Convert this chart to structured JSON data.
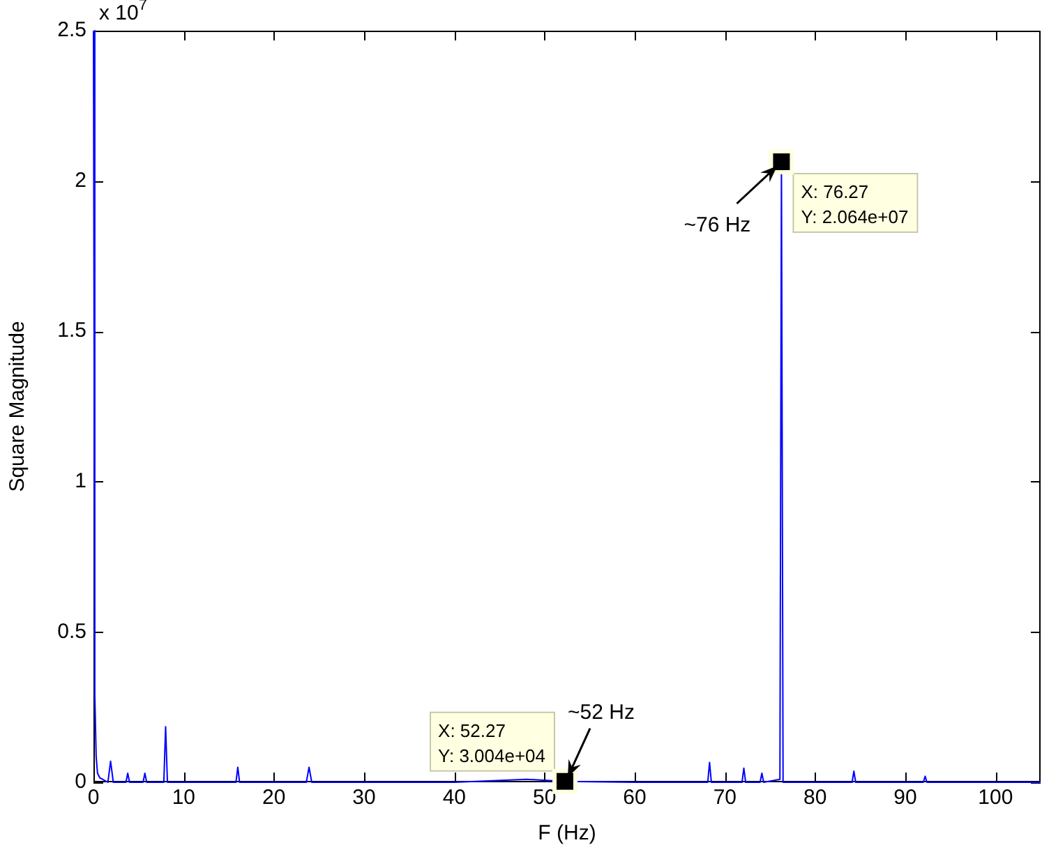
{
  "chart_data": {
    "type": "line",
    "xlabel": "F (Hz)",
    "ylabel": "Square Magnitude",
    "x": [
      0,
      0.15,
      0.3,
      0.45,
      0.7,
      1.0,
      1.6,
      1.9,
      2.2,
      3.6,
      3.8,
      4.0,
      5.5,
      5.7,
      5.9,
      7.8,
      8.0,
      8.2,
      15.8,
      16.0,
      16.2,
      23.6,
      23.9,
      24.2,
      30,
      40,
      48,
      52.27,
      60,
      68.1,
      68.3,
      68.5,
      71.9,
      72.1,
      72.3,
      73.9,
      74.1,
      74.3,
      76.1,
      76.27,
      76.45,
      84.1,
      84.3,
      84.5,
      92.0,
      92.2,
      92.4,
      105
    ],
    "values": [
      2.5,
      0.29,
      0.085,
      0.03,
      0.015,
      0.01,
      0,
      0.07,
      0,
      0,
      0.03,
      0,
      0,
      0.03,
      0,
      0,
      0.185,
      0,
      0,
      0.05,
      0,
      0,
      0.05,
      0,
      0,
      0,
      0.01,
      0.003,
      0,
      0,
      0.066,
      0,
      0,
      0.047,
      0,
      0,
      0.03,
      0,
      0.01,
      2.064,
      0,
      0,
      0.037,
      0,
      0,
      0.02,
      0,
      0
    ],
    "color": "#0000ff",
    "marker": "none",
    "line_style": "solid",
    "grid": false,
    "legend": false,
    "xlim": [
      0,
      105
    ],
    "xticks": [
      0,
      10,
      20,
      30,
      40,
      50,
      60,
      70,
      80,
      90,
      100
    ],
    "ylim": [
      0,
      2.5
    ],
    "yticks": [
      0,
      0.5,
      1,
      1.5,
      2,
      2.5
    ],
    "annotations": [
      "x 10$^{7}$",
      "X: 76.27\nY: 2.064e+07",
      {
        "text": "~76 Hz",
        "x": 76.27,
        "y": 2.064
      },
      "X: 52.27\nY: 3.004e+04",
      {
        "text": "~52 Hz",
        "x": 52.27,
        "y": 0.003
      }
    ]
  }
}
